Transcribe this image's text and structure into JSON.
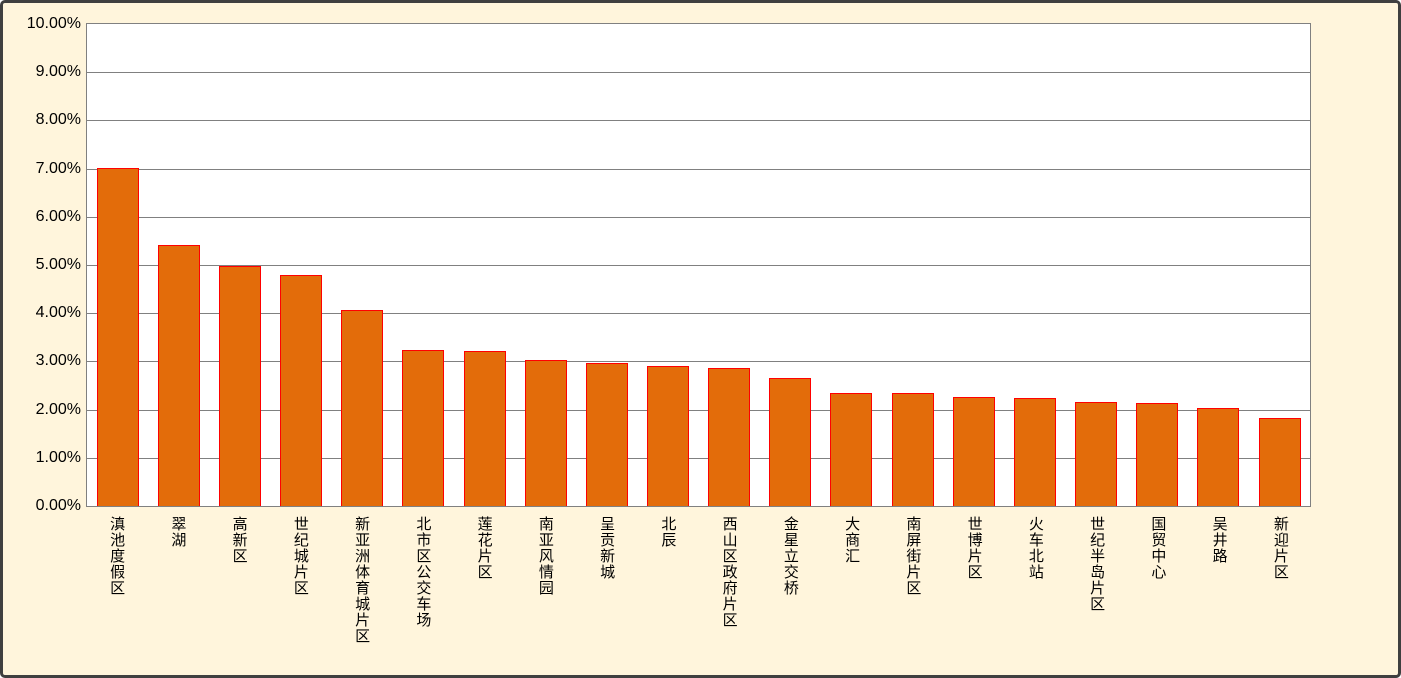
{
  "chart_data": {
    "type": "bar",
    "title": "",
    "xlabel": "",
    "ylabel": "",
    "ylim": [
      0,
      10
    ],
    "grid": true,
    "legend": false,
    "value_format": "percent",
    "categories": [
      "滇池度假区",
      "翠湖",
      "高新区",
      "世纪城片区",
      "新亚洲体育城片区",
      "北市区公交车场",
      "莲花片区",
      "南亚风情园",
      "呈贡新城",
      "北辰",
      "西山区政府片区",
      "金星立交桥",
      "大商汇",
      "南屏街片区",
      "世博片区",
      "火车北站",
      "世纪半岛片区",
      "国贸中心",
      "吴井路",
      "新迎片区"
    ],
    "values": [
      7.0,
      5.4,
      4.95,
      4.77,
      4.05,
      3.22,
      3.2,
      3.0,
      2.95,
      2.88,
      2.85,
      2.64,
      2.33,
      2.33,
      2.24,
      2.21,
      2.13,
      2.12,
      2.02,
      1.8
    ],
    "y_ticks": [
      "10.00%",
      "9.00%",
      "8.00%",
      "7.00%",
      "6.00%",
      "5.00%",
      "4.00%",
      "3.00%",
      "2.00%",
      "1.00%",
      "0.00%"
    ]
  },
  "style": {
    "bar_fill": "#E36C0A",
    "bar_border": "#FF0000",
    "chart_background": "#FFF5DC",
    "plot_background": "#FFFFFF",
    "gridline_color": "#808080",
    "frame_border": "#3F3F3F",
    "text_color": "#000000"
  }
}
